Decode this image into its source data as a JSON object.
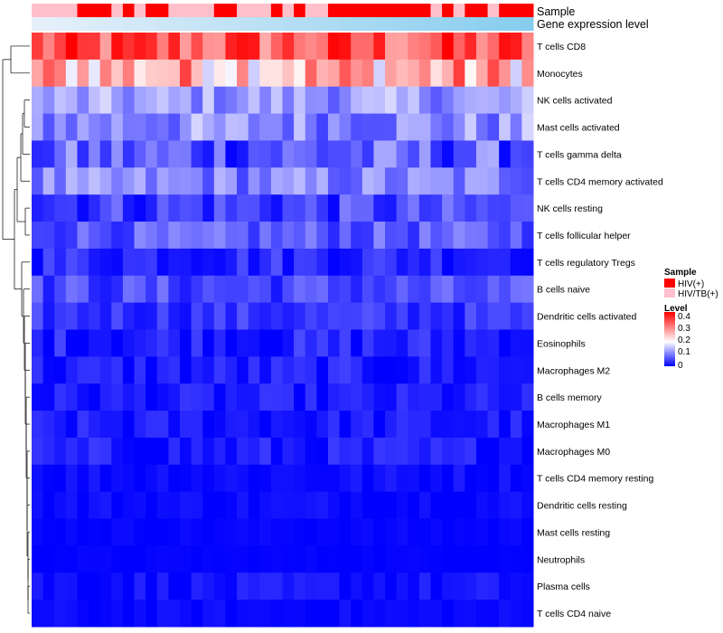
{
  "chart_data": {
    "type": "heatmap",
    "rows": [
      "T cells CD8",
      "Monocytes",
      "NK cells activated",
      "Mast cells activated",
      "T cells gamma delta",
      "T cells CD4 memory activated",
      "NK cells resting",
      "T cells follicular helper",
      "T cells regulatory  Tregs",
      "B cells naive",
      "Dendritic cells activated",
      "Eosinophils",
      "Macrophages M2",
      "B cells memory",
      "Macrophages M1",
      "Macrophages M0",
      "T cells CD4 memory resting",
      "Dendritic cells resting",
      "Mast cells resting",
      "Neutrophils",
      "Plasma cells",
      "T cells CD4 naive"
    ],
    "n_columns": 44,
    "sample_groups": [
      "P",
      "P",
      "P",
      "P",
      "R",
      "R",
      "R",
      "P",
      "R",
      "P",
      "R",
      "R",
      "P",
      "P",
      "P",
      "P",
      "R",
      "R",
      "P",
      "P",
      "P",
      "R",
      "P",
      "R",
      "P",
      "P",
      "R",
      "R",
      "R",
      "R",
      "R",
      "R",
      "R",
      "R",
      "R",
      "P",
      "R",
      "P",
      "R",
      "R",
      "P",
      "R",
      "R",
      "R"
    ],
    "annotations": [
      "Sample",
      "Gene expression level"
    ],
    "legend": {
      "sample_title": "Sample",
      "sample_items": [
        {
          "label": "HIV(+)",
          "color": "#ff0000",
          "key": "R"
        },
        {
          "label": "HIV/TB(+)",
          "color": "#ffc0cb",
          "key": "P"
        }
      ],
      "level_title": "Level",
      "level_ticks": [
        "0.4",
        "0.3",
        "0.2",
        "0.1",
        "0"
      ],
      "colors": [
        "#0000ff",
        "#ffffff",
        "#ff0000"
      ],
      "range": [
        0,
        0.45
      ]
    },
    "row_means": [
      0.36,
      0.28,
      0.12,
      0.11,
      0.07,
      0.1,
      0.05,
      0.07,
      0.035,
      0.055,
      0.04,
      0.025,
      0.02,
      0.018,
      0.018,
      0.018,
      0.01,
      0.008,
      0.004,
      0.002,
      0.012,
      0.006
    ],
    "row_spread": [
      0.1,
      0.12,
      0.05,
      0.06,
      0.07,
      0.05,
      0.05,
      0.04,
      0.035,
      0.04,
      0.03,
      0.035,
      0.03,
      0.025,
      0.025,
      0.03,
      0.015,
      0.015,
      0.006,
      0.004,
      0.02,
      0.01
    ]
  }
}
